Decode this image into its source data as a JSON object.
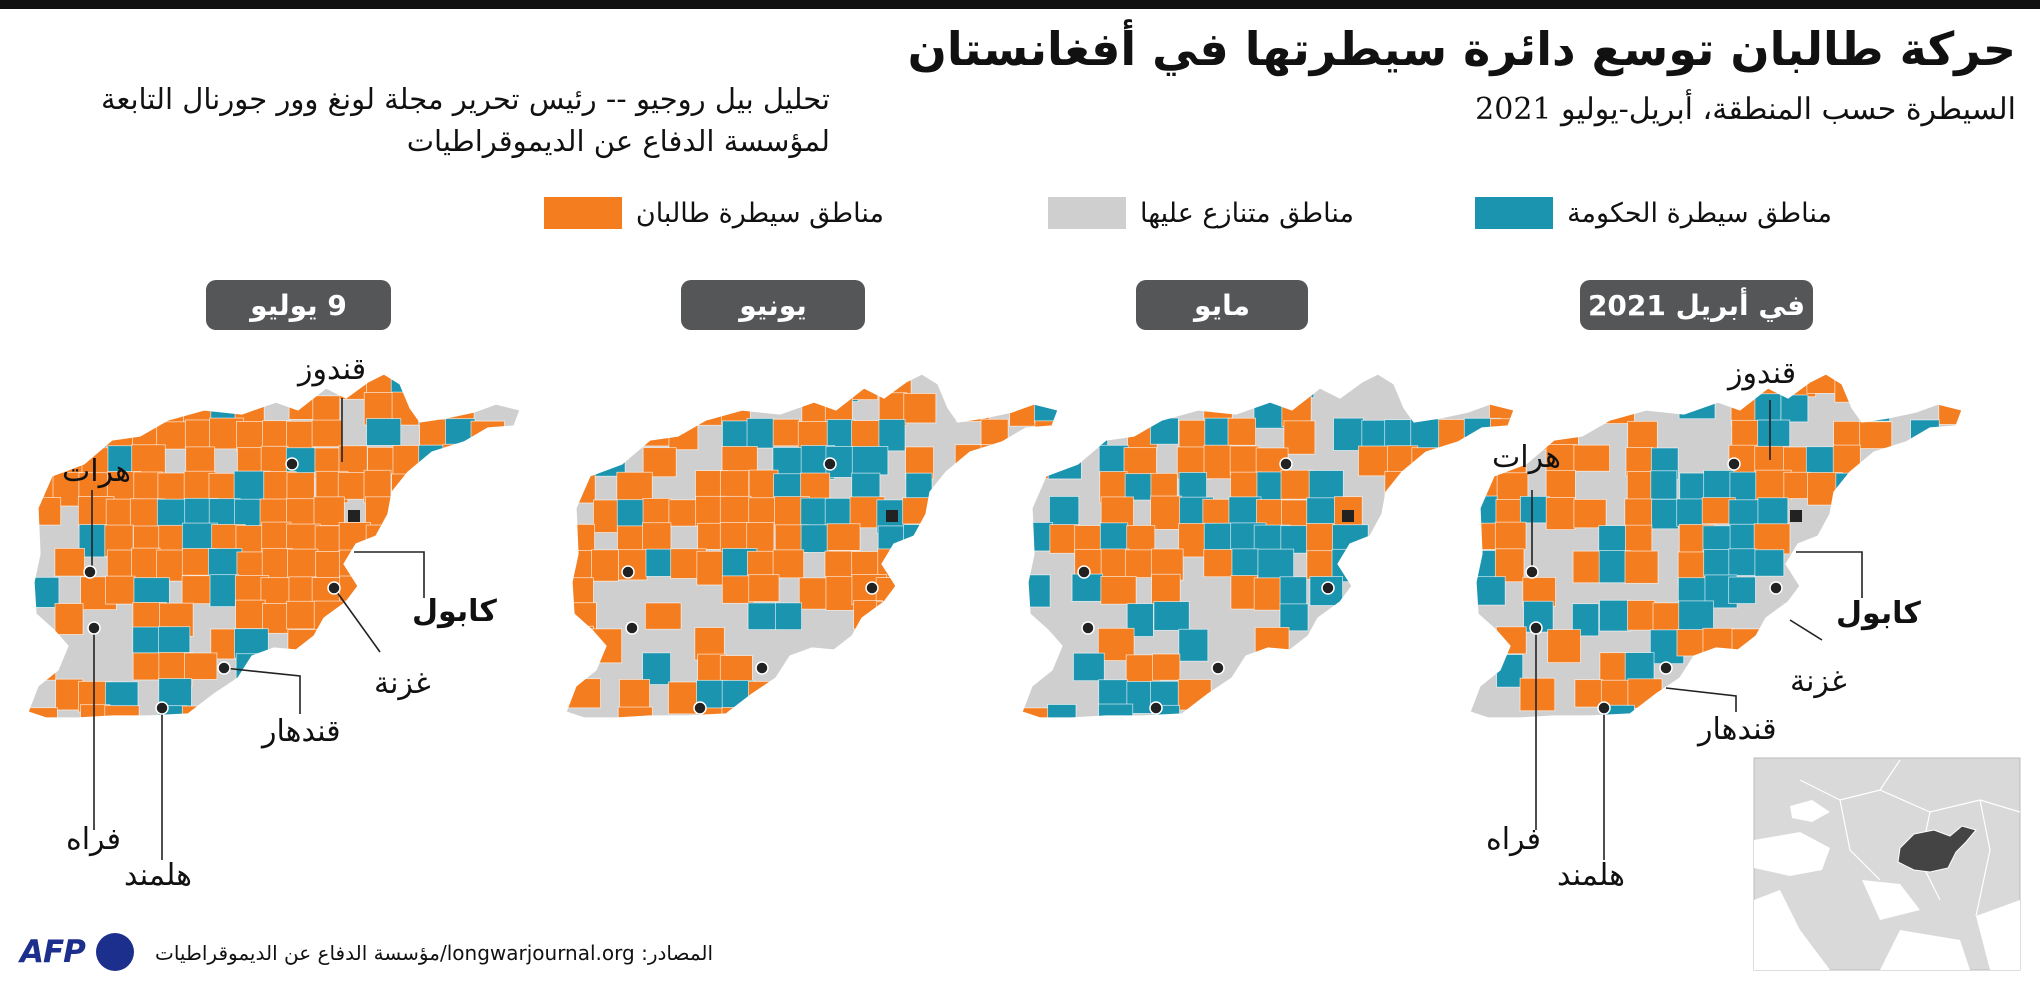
{
  "title": "حركة طالبان توسع دائرة سيطرتها في أفغانستان",
  "subtitle": "السيطرة حسب المنطقة، أبريل-يوليو 2021",
  "analysis_line1": "تحليل بيل روجيو -- رئيس تحرير مجلة لونغ وور جورنال التابعة",
  "analysis_line2": "لمؤسسة الدفاع عن الديموقراطيات",
  "legend": {
    "government": {
      "label": "مناطق سيطرة الحكومة",
      "color": "#1b94b0"
    },
    "contested": {
      "label": "مناطق متنازع عليها",
      "color": "#cfcfcf"
    },
    "taliban": {
      "label": "مناطق سيطرة طالبان",
      "color": "#f47d20"
    }
  },
  "periods": [
    {
      "label": "في أبريل 2021",
      "government_share": 0.3,
      "taliban_share": 0.32
    },
    {
      "label": "مايو",
      "government_share": 0.27,
      "taliban_share": 0.38
    },
    {
      "label": "يونيو",
      "government_share": 0.22,
      "taliban_share": 0.47
    },
    {
      "label": "9 يوليو",
      "government_share": 0.14,
      "taliban_share": 0.66
    }
  ],
  "cities": {
    "kunduz": "قندوز",
    "herat": "هرات",
    "kabul": "كابول",
    "ghazni": "غزنة",
    "kandahar": "قندهار",
    "farah": "فراه",
    "helmand": "هلمند"
  },
  "source": "المصادر: longwarjournal.org/مؤسسة الدفاع عن الديموقراطيات",
  "logo": "AFP"
}
